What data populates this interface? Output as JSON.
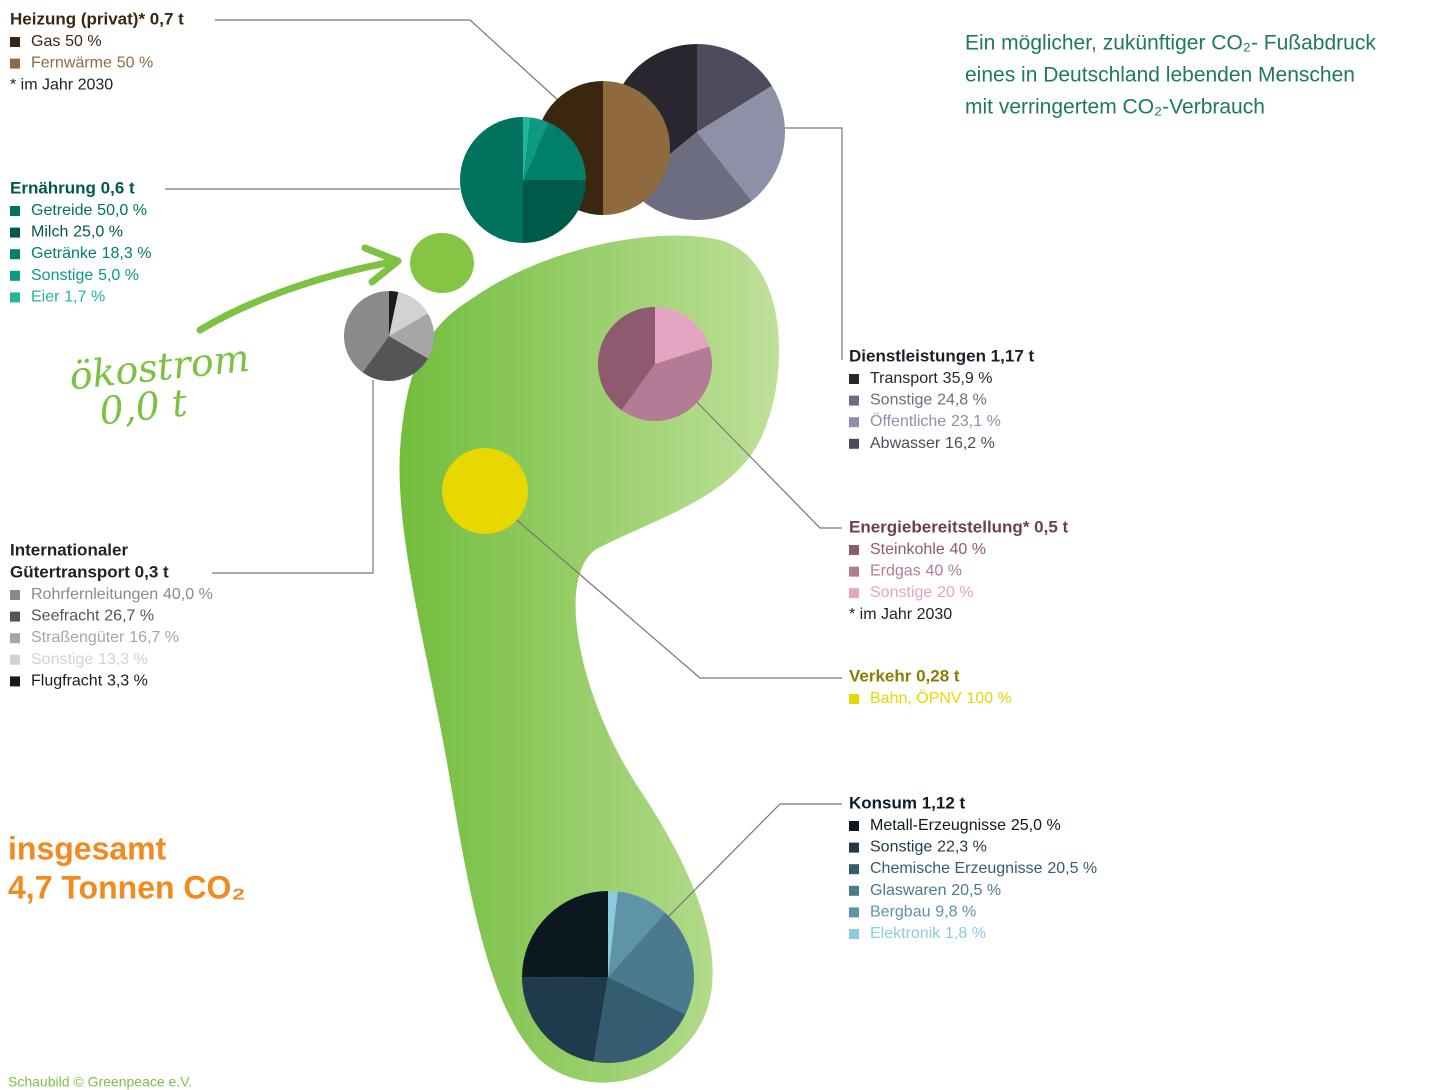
{
  "heading": [
    "Ein möglicher, zukünftiger CO₂- Fußabdruck",
    "eines in Deutschland lebenden Menschen",
    "mit verringertem CO₂-Verbrauch"
  ],
  "oekostrom": [
    "ökostrom",
    "0,0 t"
  ],
  "total": [
    "insgesamt",
    "4,7 Tonnen CO₂"
  ],
  "credit": "Schaubild © Greenpeace e.V.",
  "chart_data": [
    {
      "type": "pie",
      "title": "Heizung (privat)* 0,7 t",
      "title_color": "#3b2710",
      "categories": [
        "Gas",
        "Fernwärme"
      ],
      "values": [
        50,
        50
      ],
      "value_labels": [
        "50 %",
        "50 %"
      ],
      "colors": [
        "#3b2710",
        "#8e6a3e"
      ],
      "note": "* im Jahr 2030"
    },
    {
      "type": "pie",
      "title": "Ernährung 0,6 t",
      "title_color": "#005a4a",
      "categories": [
        "Getreide",
        "Milch",
        "Getränke",
        "Sonstige",
        "Eier"
      ],
      "values": [
        50.0,
        25.0,
        18.3,
        5.0,
        1.7
      ],
      "value_labels": [
        "50,0 %",
        "25,0 %",
        "18,3 %",
        "5,0 %",
        "1,7 %"
      ],
      "colors": [
        "#00735e",
        "#005a4a",
        "#00806a",
        "#0b9a82",
        "#22b59c"
      ]
    },
    {
      "type": "pie",
      "title": [
        "Internationaler",
        "Gütertransport 0,3 t"
      ],
      "title_color": "#222222",
      "categories": [
        "Rohrfernleitungen",
        "Seefracht",
        "Straßengüter",
        "Sonstige",
        "Flugfracht"
      ],
      "values": [
        40.0,
        26.7,
        16.7,
        13.3,
        3.3
      ],
      "value_labels": [
        "40,0 %",
        "26,7 %",
        "16,7 %",
        "13,3 %",
        "3,3 %"
      ],
      "colors": [
        "#8a8a8c",
        "#555557",
        "#a6a6a8",
        "#d2d2d4",
        "#1a1a1a"
      ]
    },
    {
      "type": "pie",
      "title": "Dienstleistungen 1,17 t",
      "title_color": "#1e1e2a",
      "categories": [
        "Transport",
        "Sonstige",
        "Öffentliche",
        "Abwasser"
      ],
      "values": [
        35.9,
        24.8,
        23.1,
        16.2
      ],
      "value_labels": [
        "35,9 %",
        "24,8 %",
        "23,1 %",
        "16,2 %"
      ],
      "colors": [
        "#28262f",
        "#6c6d80",
        "#8e90a8",
        "#4c4c5c"
      ]
    },
    {
      "type": "pie",
      "title": "Energiebereitstellung* 0,5 t",
      "title_color": "#6e3c56",
      "categories": [
        "Steinkohle",
        "Erdgas",
        "Sonstige"
      ],
      "values": [
        40,
        40,
        20
      ],
      "value_labels": [
        "40 %",
        "40 %",
        "20 %"
      ],
      "colors": [
        "#8d5a70",
        "#b47a96",
        "#e3a5c2"
      ],
      "note": "* im Jahr 2030"
    },
    {
      "type": "pie",
      "title": "Verkehr 0,28 t",
      "title_color": "#8c7d00",
      "categories": [
        "Bahn, ÖPNV"
      ],
      "values": [
        100
      ],
      "value_labels": [
        "100 %"
      ],
      "colors": [
        "#e6d800"
      ]
    },
    {
      "type": "pie",
      "title": "Konsum 1,12 t",
      "title_color": "#0c1c28",
      "categories": [
        "Metall-Erzeugnisse",
        "Sonstige",
        "Chemische Erzeugnisse",
        "Glaswaren",
        "Bergbau",
        "Elektronik"
      ],
      "values": [
        25.0,
        22.3,
        20.5,
        20.5,
        9.8,
        1.8
      ],
      "value_labels": [
        "25,0 %",
        "22,3 %",
        "20,5 %",
        "20,5 %",
        "9,8 %",
        "1,8 %"
      ],
      "colors": [
        "#0b1820",
        "#1f3a4a",
        "#355c70",
        "#4a7a8e",
        "#5e93a8",
        "#8ccbe0"
      ]
    }
  ]
}
